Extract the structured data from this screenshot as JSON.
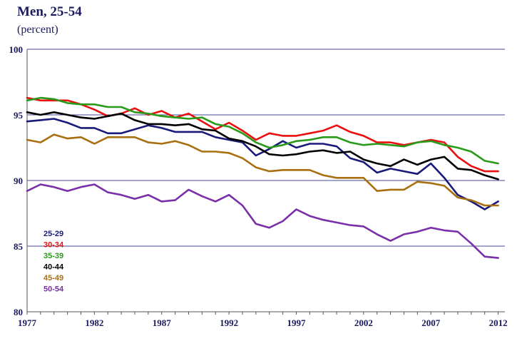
{
  "chart_data": {
    "type": "line",
    "title": "Men, 25-54",
    "subtitle": "(percent)",
    "ylim": [
      80,
      100
    ],
    "y_ticks": [
      80,
      85,
      90,
      95,
      100
    ],
    "y_tick_labels": [
      "80",
      "85",
      "90",
      "95",
      "100"
    ],
    "xlim": [
      1977,
      2012.5
    ],
    "x_ticks": [
      1977,
      1982,
      1987,
      1992,
      1997,
      2002,
      2007,
      2012
    ],
    "x_tick_labels": [
      "1977",
      "1982",
      "1987",
      "1992",
      "1997",
      "2002",
      "2007",
      "2012"
    ],
    "grid": "horizontal",
    "legend_position": "bottom-left",
    "x": [
      1977,
      1978,
      1979,
      1980,
      1981,
      1982,
      1983,
      1984,
      1985,
      1986,
      1987,
      1988,
      1989,
      1990,
      1991,
      1992,
      1993,
      1994,
      1995,
      1996,
      1997,
      1998,
      1999,
      2000,
      2001,
      2002,
      2003,
      2004,
      2005,
      2006,
      2007,
      2008,
      2009,
      2010,
      2011,
      2012
    ],
    "series": [
      {
        "name": "25-29",
        "color": "#1a1a7a",
        "values": [
          94.5,
          94.6,
          94.7,
          94.4,
          94.0,
          94.0,
          93.6,
          93.6,
          93.9,
          94.2,
          94.0,
          93.7,
          93.7,
          93.7,
          93.3,
          93.1,
          92.9,
          91.9,
          92.4,
          93.0,
          92.5,
          92.8,
          92.8,
          92.6,
          91.7,
          91.4,
          90.6,
          90.9,
          90.7,
          90.5,
          91.3,
          90.2,
          88.9,
          88.4,
          87.8,
          88.4
        ]
      },
      {
        "name": "30-34",
        "color": "#e81010",
        "values": [
          96.3,
          96.1,
          96.1,
          96.1,
          95.8,
          95.4,
          94.9,
          95.1,
          95.5,
          95.0,
          95.3,
          94.8,
          95.1,
          94.5,
          93.9,
          94.4,
          93.8,
          93.1,
          93.6,
          93.4,
          93.4,
          93.6,
          93.8,
          94.2,
          93.7,
          93.4,
          92.9,
          92.9,
          92.7,
          92.9,
          93.1,
          92.9,
          91.8,
          91.1,
          90.7,
          90.7
        ]
      },
      {
        "name": "35-39",
        "color": "#2a9a1a",
        "values": [
          96.1,
          96.3,
          96.2,
          95.9,
          95.8,
          95.8,
          95.6,
          95.6,
          95.2,
          95.1,
          94.9,
          94.8,
          94.7,
          94.8,
          94.3,
          94.1,
          93.6,
          92.9,
          92.5,
          92.7,
          93.0,
          93.1,
          93.3,
          93.3,
          92.9,
          92.7,
          92.8,
          92.7,
          92.6,
          92.9,
          93.0,
          92.7,
          92.5,
          92.2,
          91.5,
          91.3
        ]
      },
      {
        "name": "40-44",
        "color": "#000000",
        "values": [
          95.2,
          95.0,
          95.2,
          95.0,
          94.8,
          94.7,
          94.9,
          95.1,
          94.6,
          94.3,
          94.3,
          94.2,
          94.3,
          93.9,
          93.8,
          93.2,
          93.0,
          92.6,
          92.0,
          91.9,
          92.0,
          92.2,
          92.3,
          92.1,
          92.2,
          91.6,
          91.3,
          91.1,
          91.6,
          91.2,
          91.6,
          91.8,
          90.9,
          90.8,
          90.4,
          90.1
        ]
      },
      {
        "name": "45-49",
        "color": "#a87010",
        "values": [
          93.1,
          92.9,
          93.5,
          93.2,
          93.3,
          92.8,
          93.3,
          93.3,
          93.3,
          92.9,
          92.8,
          93.0,
          92.7,
          92.2,
          92.2,
          92.1,
          91.7,
          91.0,
          90.7,
          90.8,
          90.8,
          90.8,
          90.4,
          90.2,
          90.2,
          90.2,
          89.2,
          89.3,
          89.3,
          89.9,
          89.8,
          89.6,
          88.7,
          88.5,
          88.1,
          88.1
        ]
      },
      {
        "name": "50-54",
        "color": "#7a30a8",
        "values": [
          89.2,
          89.7,
          89.5,
          89.2,
          89.5,
          89.7,
          89.1,
          88.9,
          88.6,
          88.9,
          88.4,
          88.5,
          89.3,
          88.8,
          88.4,
          88.9,
          88.1,
          86.7,
          86.4,
          86.9,
          87.8,
          87.3,
          87.0,
          86.8,
          86.6,
          86.5,
          85.9,
          85.4,
          85.9,
          86.1,
          86.4,
          86.2,
          86.1,
          85.2,
          84.2,
          84.1
        ]
      }
    ]
  }
}
